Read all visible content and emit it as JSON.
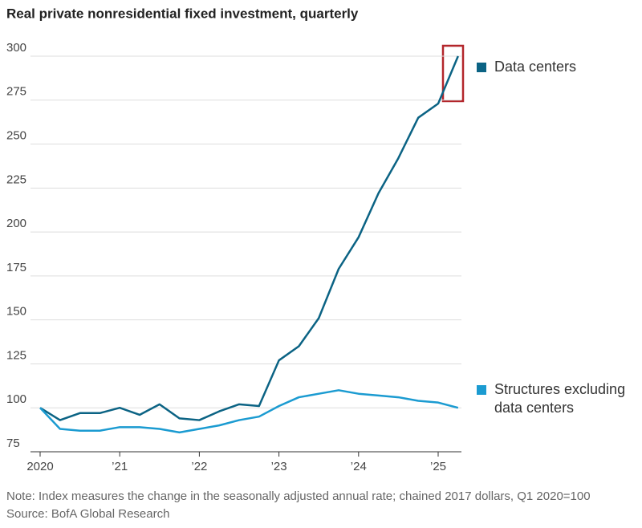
{
  "chart_data": {
    "type": "line",
    "title": "Real private nonresidential fixed investment, quarterly",
    "note": "Note: Index measures the change in the seasonally adjusted annual rate; chained 2017 dollars, Q1 2020=100",
    "source": "Source: BofA Global Research",
    "categories": [
      "2020",
      null,
      null,
      null,
      "’21",
      null,
      null,
      null,
      "’22",
      null,
      null,
      null,
      "’23",
      null,
      null,
      null,
      "’24",
      null,
      null,
      null,
      "’25",
      null
    ],
    "series": [
      {
        "name": "Data centers",
        "color": "#0b6384",
        "values": [
          100,
          93,
          97,
          97,
          100,
          96,
          102,
          94,
          93,
          98,
          102,
          101,
          127,
          135,
          151,
          179,
          197,
          222,
          242,
          265,
          273,
          300
        ]
      },
      {
        "name": "Structures excluding data centers",
        "color": "#1b9bd1",
        "values": [
          100,
          88,
          87,
          87,
          89,
          89,
          88,
          86,
          88,
          90,
          93,
          95,
          101,
          106,
          108,
          110,
          108,
          107,
          106,
          104,
          103,
          100
        ]
      }
    ],
    "ylim": [
      75,
      300
    ],
    "yticks": [
      75,
      100,
      125,
      150,
      175,
      200,
      225,
      250,
      275,
      300
    ],
    "grid": true
  }
}
